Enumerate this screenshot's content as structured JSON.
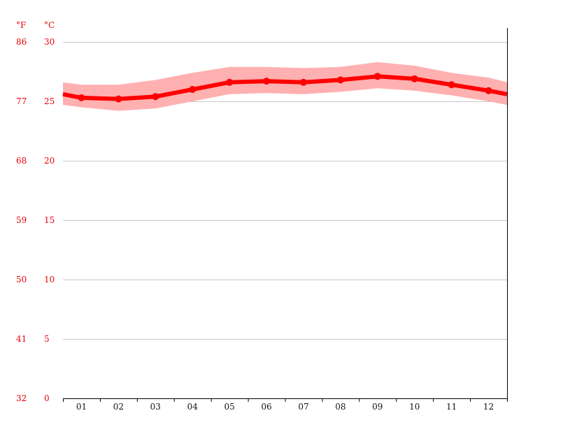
{
  "chart_data": {
    "type": "line",
    "title": "",
    "xlabel": "",
    "ylabel": "",
    "units": {
      "fahrenheit": "°F",
      "celsius": "°C"
    },
    "categories": [
      "01",
      "02",
      "03",
      "04",
      "05",
      "06",
      "07",
      "08",
      "09",
      "10",
      "11",
      "12"
    ],
    "y_ticks_c": [
      0,
      5,
      10,
      15,
      20,
      25,
      30
    ],
    "y_ticks_f": [
      32,
      41,
      50,
      59,
      68,
      77,
      86
    ],
    "ylim": [
      0,
      30
    ],
    "grid": true,
    "series": [
      {
        "color": "#ff0000",
        "values": [
          25.3,
          25.2,
          25.4,
          26.0,
          26.6,
          26.7,
          26.6,
          26.8,
          27.1,
          26.9,
          26.4,
          25.9
        ]
      }
    ],
    "band": {
      "color": "#ffb0b0",
      "upper": [
        26.4,
        26.4,
        26.8,
        27.4,
        27.9,
        27.9,
        27.8,
        27.9,
        28.3,
        28.0,
        27.4,
        27.0
      ],
      "lower": [
        24.5,
        24.2,
        24.4,
        25.0,
        25.6,
        25.7,
        25.6,
        25.8,
        26.1,
        25.9,
        25.5,
        25.0
      ]
    },
    "edges": {
      "left": {
        "value": 25.6,
        "upper": 26.6,
        "lower": 24.7
      },
      "right": {
        "value": 25.6,
        "upper": 26.6,
        "lower": 24.7
      }
    }
  }
}
